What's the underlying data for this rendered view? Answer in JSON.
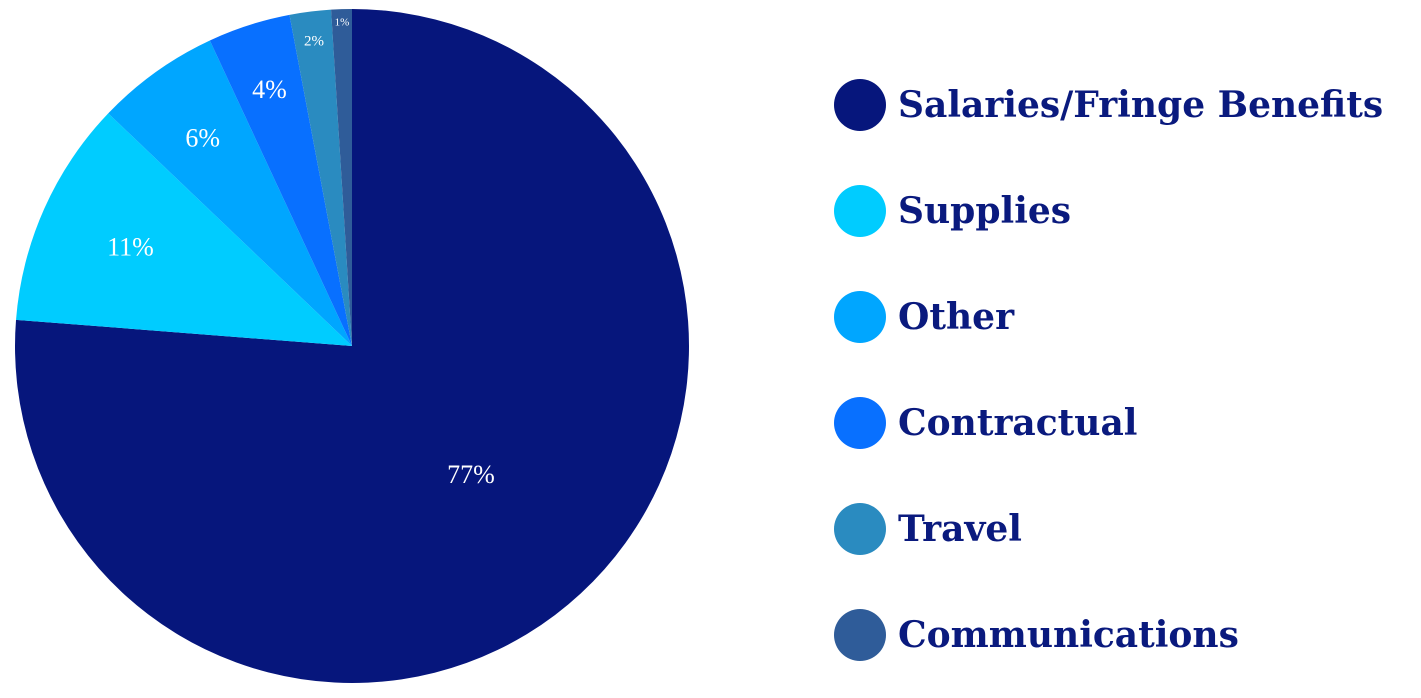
{
  "chart_data": {
    "type": "pie",
    "categories": [
      "Salaries/Fringe Benefits",
      "Supplies",
      "Other",
      "Contractual",
      "Travel",
      "Communications"
    ],
    "values": [
      77,
      11,
      6,
      4,
      2,
      1
    ],
    "labels": [
      "77%",
      "11%",
      "6%",
      "4%",
      "2%",
      "1%"
    ],
    "colors": [
      "#06167c",
      "#00ccff",
      "#00a6ff",
      "#0870ff",
      "#2a8bc0",
      "#2f5c99"
    ],
    "legend_position": "right",
    "start": "top",
    "direction": "clockwise"
  }
}
